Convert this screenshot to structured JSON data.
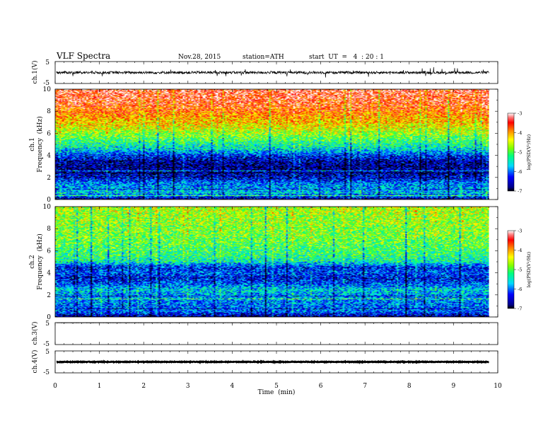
{
  "header": {
    "title": "VLF  Spectra",
    "date": "Nov.28, 2015",
    "station": "station=ATH",
    "start": "start  UT  =   4  : 20 : 1"
  },
  "chart_data": [
    {
      "type": "line",
      "ylabel": "ch.1(V)",
      "xlim": [
        0,
        10
      ],
      "ylim": [
        -5,
        5
      ],
      "yticks": [
        "5",
        "-5"
      ],
      "signal_level_approx": 0,
      "signal_spread_approx": 1.2
    },
    {
      "type": "heatmap",
      "ylabel": "ch.1\nFrequency  (kHz)",
      "ylabel_lines": [
        "ch.1",
        "Frequency  (kHz)"
      ],
      "xlim": [
        0,
        10
      ],
      "ylim": [
        0,
        10
      ],
      "yticks": [
        "0",
        "2",
        "4",
        "6",
        "8",
        "10"
      ],
      "data_end_time": 9.8,
      "colorbar": {
        "label": "log(PSD(V²/Hz)",
        "range": [
          -7,
          -3
        ],
        "ticks": [
          "-3",
          "-4",
          "-5",
          "-6",
          "-7"
        ]
      },
      "profile_freq_khz": [
        0.0,
        0.5,
        1.0,
        1.5,
        2.0,
        2.5,
        3.0,
        3.5,
        4.0,
        4.5,
        5.0,
        5.5,
        6.0,
        6.5,
        7.0,
        7.5,
        8.0,
        8.5,
        9.0,
        9.5,
        10.0
      ],
      "profile_logpsd": [
        -6.8,
        -5.6,
        -5.8,
        -6.0,
        -6.5,
        -6.6,
        -6.7,
        -6.6,
        -6.2,
        -5.6,
        -5.3,
        -5.0,
        -4.7,
        -4.4,
        -4.2,
        -4.0,
        -3.8,
        -3.6,
        -3.5,
        -3.4,
        -3.4
      ]
    },
    {
      "type": "heatmap",
      "ylabel": "ch.2\nFrequency  (kHz)",
      "ylabel_lines": [
        "ch.2",
        "Frequency  (kHz)"
      ],
      "xlim": [
        0,
        10
      ],
      "ylim": [
        0,
        10
      ],
      "yticks": [
        "0",
        "2",
        "4",
        "6",
        "8",
        "10"
      ],
      "data_end_time": 9.8,
      "colorbar": {
        "label": "log(PSD(V²/Hz)",
        "range": [
          -7,
          -3
        ],
        "ticks": [
          "-3",
          "-4",
          "-5",
          "-6",
          "-7"
        ]
      },
      "profile_freq_khz": [
        0.0,
        0.5,
        1.0,
        1.5,
        2.0,
        2.5,
        3.0,
        3.5,
        4.0,
        4.5,
        5.0,
        5.5,
        6.0,
        6.5,
        7.0,
        7.5,
        8.0,
        8.5,
        9.0,
        9.5,
        10.0
      ],
      "profile_logpsd": [
        -6.8,
        -6.0,
        -6.0,
        -5.9,
        -5.8,
        -5.6,
        -6.1,
        -6.4,
        -6.1,
        -6.3,
        -5.4,
        -5.2,
        -5.1,
        -5.0,
        -4.9,
        -4.8,
        -4.8,
        -4.7,
        -4.7,
        -4.6,
        -4.6
      ]
    },
    {
      "type": "line",
      "ylabel": "ch.3(V)",
      "xlim": [
        0,
        10
      ],
      "ylim": [
        -5,
        5
      ],
      "yticks": [
        "5",
        "-5"
      ],
      "signal_level_approx": 4.9,
      "signal_spread_approx": 0.05
    },
    {
      "type": "line",
      "ylabel": "ch.4(V)",
      "xlim": [
        0,
        10
      ],
      "ylim": [
        -5,
        5
      ],
      "yticks": [
        "5",
        "-5"
      ],
      "signal_level_approx": 0,
      "signal_spread_approx": 0.3
    }
  ],
  "xaxis": {
    "label": "Time  (min)",
    "ticks": [
      "0",
      "1",
      "2",
      "3",
      "4",
      "5",
      "6",
      "7",
      "8",
      "9",
      "10"
    ],
    "range": [
      0,
      10
    ]
  }
}
